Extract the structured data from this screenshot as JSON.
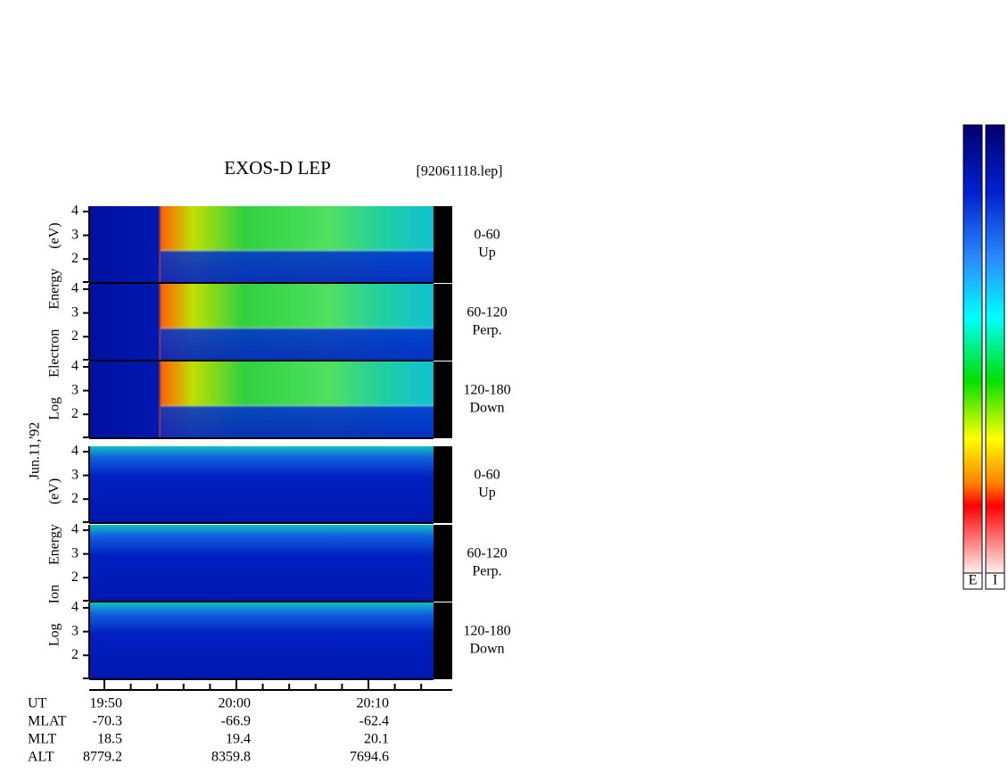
{
  "title": "EXOS-D LEP",
  "file": "[92061118.lep]",
  "date": "Jun.11,'92",
  "electron_axis_label": "Log Electron Energy (eV)",
  "ion_axis_label": "Log Ion Energy (eV)",
  "panels": [
    {
      "label": "0-60",
      "sub": "Up",
      "yticks": [
        "4",
        "3",
        "2"
      ]
    },
    {
      "label": "60-120",
      "sub": "Perp.",
      "yticks": [
        "4",
        "3",
        "2"
      ]
    },
    {
      "label": "120-180",
      "sub": "Down",
      "yticks": [
        "4",
        "3",
        "2"
      ]
    },
    {
      "label": "0-60",
      "sub": "Up",
      "yticks": [
        "4",
        "3",
        "2"
      ]
    },
    {
      "label": "60-120",
      "sub": "Perp.",
      "yticks": [
        "4",
        "3",
        "2"
      ]
    },
    {
      "label": "120-180",
      "sub": "Down",
      "yticks": [
        "4",
        "3",
        "2"
      ]
    }
  ],
  "time_axis": [
    {
      "name": "UT",
      "values": [
        "19:50",
        "20:00",
        "20:10"
      ]
    },
    {
      "name": "MLAT",
      "values": [
        "-70.3",
        "-66.9",
        "-62.4"
      ]
    },
    {
      "name": "MLT",
      "values": [
        "18.5",
        "19.4",
        "20.1"
      ]
    },
    {
      "name": "ALT",
      "values": [
        "8779.2",
        "8359.8",
        "7694.6"
      ]
    }
  ],
  "colorbars": [
    "E",
    "I"
  ]
}
